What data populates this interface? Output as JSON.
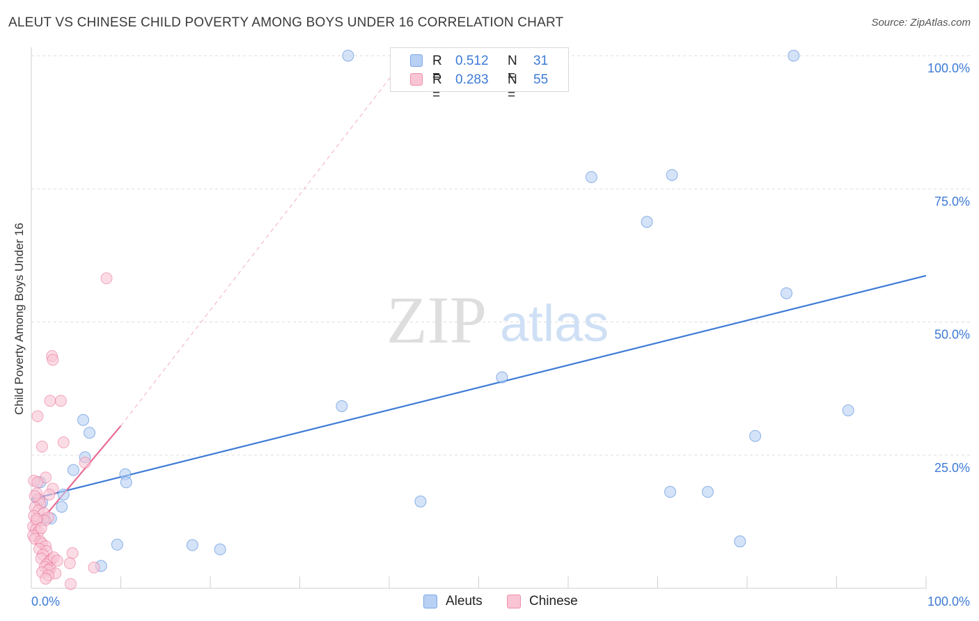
{
  "header": {
    "title": "ALEUT VS CHINESE CHILD POVERTY AMONG BOYS UNDER 16 CORRELATION CHART",
    "source": "Source: ZipAtlas.com"
  },
  "watermark": {
    "zip": "ZIP",
    "atlas": "atlas"
  },
  "legend": {
    "r_label": "R =",
    "n_label": "N =",
    "rows": [
      {
        "name": "Aleuts",
        "r": "0.512",
        "n": "31",
        "fill": "#b7d0f4",
        "stroke": "#7aa6e6"
      },
      {
        "name": "Chinese",
        "r": "0.283",
        "n": "55",
        "fill": "#f9c4d4",
        "stroke": "#ee90aa"
      }
    ]
  },
  "chart_data": {
    "type": "scatter",
    "title": "ALEUT VS CHINESE CHILD POVERTY AMONG BOYS UNDER 16 CORRELATION CHART",
    "xlabel": "",
    "ylabel": "Child Poverty Among Boys Under 16",
    "xlim": [
      0,
      100
    ],
    "ylim": [
      0,
      100
    ],
    "x_tick_labels": [
      "0.0%",
      "100.0%"
    ],
    "y_tick_labels": [
      "100.0%",
      "75.0%",
      "50.0%",
      "25.0%"
    ],
    "y_ticks": [
      100,
      75,
      50,
      25
    ],
    "grid": true,
    "legend_position": "top-center",
    "series": [
      {
        "name": "Aleuts",
        "color": "#3d7ad6",
        "fill": "#b7d0f4",
        "points": [
          [
            35.4,
            100
          ],
          [
            85.2,
            100
          ],
          [
            62.6,
            77.2
          ],
          [
            71.6,
            77.6
          ],
          [
            68.8,
            68.8
          ],
          [
            84.4,
            55.4
          ],
          [
            52.6,
            39.6
          ],
          [
            34.7,
            34.2
          ],
          [
            91.3,
            33.4
          ],
          [
            80.9,
            28.6
          ],
          [
            5.8,
            31.6
          ],
          [
            6.5,
            29.2
          ],
          [
            6.0,
            24.6
          ],
          [
            4.7,
            22.2
          ],
          [
            10.5,
            21.4
          ],
          [
            10.6,
            19.9
          ],
          [
            71.4,
            18.1
          ],
          [
            75.6,
            18.1
          ],
          [
            43.5,
            16.3
          ],
          [
            1.0,
            19.9
          ],
          [
            3.6,
            17.6
          ],
          [
            0.7,
            16.8
          ],
          [
            1.2,
            16.1
          ],
          [
            3.4,
            15.3
          ],
          [
            2.2,
            13.1
          ],
          [
            1.3,
            12.9
          ],
          [
            9.6,
            8.2
          ],
          [
            18.0,
            8.1
          ],
          [
            21.1,
            7.3
          ],
          [
            79.2,
            8.8
          ],
          [
            7.8,
            4.2
          ]
        ],
        "trend": {
          "x": [
            0,
            100
          ],
          "y": [
            16.7,
            58.7
          ]
        }
      },
      {
        "name": "Chinese",
        "color": "#e86a93",
        "fill": "#f9c4d4",
        "points": [
          [
            8.4,
            58.2
          ],
          [
            2.3,
            43.6
          ],
          [
            2.4,
            42.9
          ],
          [
            2.1,
            35.2
          ],
          [
            3.3,
            35.2
          ],
          [
            0.7,
            32.3
          ],
          [
            1.2,
            26.6
          ],
          [
            3.6,
            27.4
          ],
          [
            6.0,
            23.6
          ],
          [
            1.6,
            20.8
          ],
          [
            0.3,
            20.2
          ],
          [
            0.7,
            19.9
          ],
          [
            2.4,
            18.7
          ],
          [
            0.6,
            17.8
          ],
          [
            2.0,
            17.6
          ],
          [
            0.9,
            16.6
          ],
          [
            1.0,
            15.9
          ],
          [
            0.4,
            15.2
          ],
          [
            0.8,
            14.6
          ],
          [
            1.4,
            14.1
          ],
          [
            0.3,
            13.6
          ],
          [
            1.9,
            13.3
          ],
          [
            1.5,
            12.7
          ],
          [
            0.6,
            12.6
          ],
          [
            0.2,
            11.6
          ],
          [
            0.5,
            11.0
          ],
          [
            0.8,
            10.6
          ],
          [
            0.2,
            9.9
          ],
          [
            0.4,
            9.3
          ],
          [
            1.0,
            8.8
          ],
          [
            1.2,
            8.4
          ],
          [
            1.6,
            7.9
          ],
          [
            0.9,
            7.4
          ],
          [
            1.7,
            7.0
          ],
          [
            4.6,
            6.6
          ],
          [
            1.3,
            6.3
          ],
          [
            1.1,
            5.6
          ],
          [
            2.2,
            5.4
          ],
          [
            2.0,
            5.0
          ],
          [
            4.3,
            4.7
          ],
          [
            1.7,
            4.5
          ],
          [
            1.5,
            4.0
          ],
          [
            2.1,
            3.7
          ],
          [
            7.0,
            3.9
          ],
          [
            1.9,
            3.4
          ],
          [
            1.2,
            3.0
          ],
          [
            2.7,
            2.8
          ],
          [
            1.9,
            2.4
          ],
          [
            1.6,
            1.8
          ],
          [
            4.4,
            0.8
          ],
          [
            0.4,
            17.3
          ],
          [
            0.6,
            13.0
          ],
          [
            1.1,
            11.3
          ],
          [
            2.5,
            5.8
          ],
          [
            2.9,
            5.2
          ]
        ],
        "trend": {
          "x": [
            0,
            10
          ],
          "y": [
            10.5,
            30.5
          ]
        },
        "trend_extended": {
          "x": [
            10,
            42
          ],
          "y": [
            30.5,
            100
          ]
        }
      }
    ]
  }
}
